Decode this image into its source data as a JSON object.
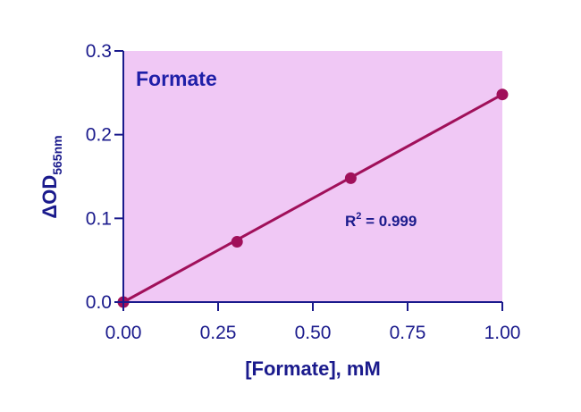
{
  "chart_data": {
    "type": "scatter",
    "title": "Formate",
    "xlabel": "[Formate], mM",
    "ylabel": {
      "main": "ΔOD",
      "subscript": "565nm"
    },
    "annotation": {
      "base": "R",
      "superscript": "2",
      "rest": " = 0.999"
    },
    "xlim": [
      0,
      1
    ],
    "ylim": [
      0,
      0.3
    ],
    "x_ticks": [
      "0.00",
      "0.25",
      "0.50",
      "0.75",
      "1.00"
    ],
    "x_tick_values": [
      0,
      0.25,
      0.5,
      0.75,
      1.0
    ],
    "y_ticks": [
      "0.0",
      "0.1",
      "0.2",
      "0.3"
    ],
    "y_tick_values": [
      0,
      0.1,
      0.2,
      0.3
    ],
    "series": [
      {
        "points": [
          {
            "x": 0.0,
            "y": 0.0
          },
          {
            "x": 0.3,
            "y": 0.072
          },
          {
            "x": 0.6,
            "y": 0.148
          },
          {
            "x": 1.0,
            "y": 0.248
          }
        ]
      }
    ],
    "fit_line": {
      "x": [
        0.0,
        1.0
      ],
      "y": [
        0.0,
        0.248
      ]
    },
    "grid": false,
    "colors": {
      "plot_background": "#f0c8f5",
      "series": "#a0105a",
      "axis": "#1a1a8c",
      "text": "#1a1a8c"
    }
  }
}
